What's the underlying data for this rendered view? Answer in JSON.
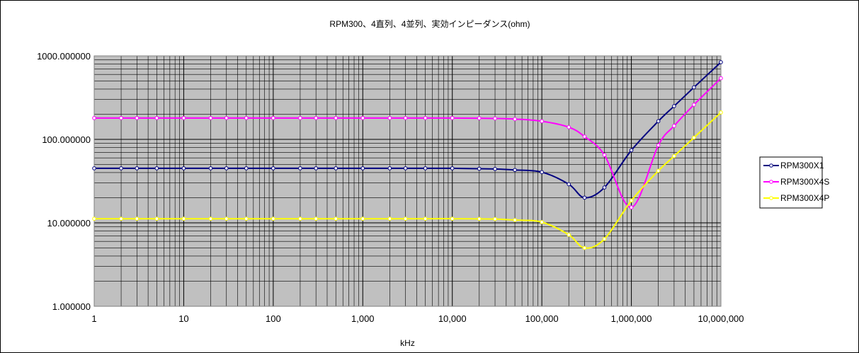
{
  "chart_data": {
    "type": "line",
    "title": "RPM300、4直列、4並列、実効インピーダンス(ohm)",
    "xlabel": "kHz",
    "ylabel": "",
    "x_scale": "log",
    "y_scale": "log",
    "xlim": [
      1,
      10000000
    ],
    "ylim": [
      1,
      1000
    ],
    "grid": true,
    "legend": "right",
    "plot_background": "#c0c0c0",
    "x_tick_labels": [
      "1",
      "10",
      "100",
      "1,000",
      "10,000",
      "100,000",
      "1,000,000",
      "10,000,000"
    ],
    "y_tick_labels": [
      "1.000000",
      "10.000000",
      "100.000000",
      "1000.000000"
    ],
    "x": [
      1,
      2,
      3,
      5,
      10,
      20,
      30,
      50,
      100,
      200,
      300,
      500,
      1000,
      2000,
      3000,
      5000,
      10000,
      20000,
      30000,
      50000,
      100000,
      200000,
      300000,
      500000,
      1000000,
      2000000,
      3000000,
      5000000,
      10000000
    ],
    "series": [
      {
        "name": "RPM300X1",
        "color": "#000080",
        "values": [
          45,
          45,
          45,
          45,
          45,
          45,
          45,
          45,
          45,
          45,
          45,
          45,
          45,
          45,
          45,
          45,
          45,
          44.5,
          44.2,
          43,
          40.5,
          29,
          20,
          26.5,
          74,
          165,
          250,
          420,
          840
        ]
      },
      {
        "name": "RPM300X4S",
        "color": "#ff00ff",
        "values": [
          180,
          180,
          180,
          180,
          180,
          180,
          180,
          180,
          180,
          180,
          180,
          180,
          180,
          180,
          180,
          180,
          180,
          179,
          178,
          175,
          165,
          140,
          108,
          65,
          15.3,
          85,
          145,
          260,
          540
        ]
      },
      {
        "name": "RPM300X4P",
        "color": "#ffff00",
        "values": [
          11.2,
          11.2,
          11.2,
          11.2,
          11.2,
          11.2,
          11.2,
          11.2,
          11.2,
          11.2,
          11.2,
          11.2,
          11.2,
          11.2,
          11.2,
          11.2,
          11.2,
          11.15,
          11.1,
          10.8,
          10.2,
          7.2,
          5.0,
          6.4,
          18.5,
          42,
          63,
          105,
          210
        ]
      }
    ]
  }
}
